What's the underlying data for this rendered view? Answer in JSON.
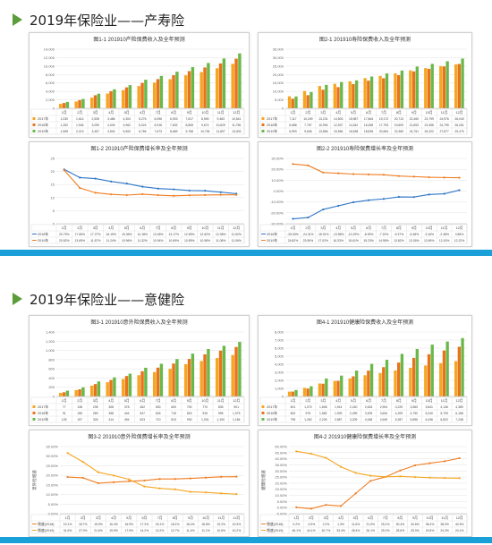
{
  "sections": [
    {
      "title": "2019年保险业——产寿险"
    },
    {
      "title": "2019年保险业——意健险"
    }
  ],
  "colors": {
    "y2017": "#f5a623",
    "y2018": "#e8731a",
    "y2019": "#6bb84a",
    "growth2018": "#2e75c5",
    "growth2019": "#ef7d22",
    "accent": "#1aa0d8",
    "title_marker": "#5b9d3a"
  },
  "chart_data": [
    {
      "id": "c11",
      "type": "bar",
      "title": "图1-1  201910产险保费收入及全年预测",
      "categories": [
        "1月",
        "2月",
        "3月",
        "4月",
        "5月",
        "6月",
        "7月",
        "8月",
        "9月",
        "10月",
        "11月",
        "12月"
      ],
      "ylim": [
        0,
        14000
      ],
      "yticks": [
        "0",
        "2,000",
        "4,000",
        "6,000",
        "8,000",
        "10,000",
        "12,000",
        "14,000"
      ],
      "series": [
        {
          "name": "2017年",
          "values": [
            1030,
            1614,
            2535,
            3486,
            4304,
            5276,
            6096,
            6903,
            7817,
            8590,
            9483,
            10541
          ],
          "labels": [
            "1,030",
            "1,614",
            "2,535",
            "3,486",
            "4,304",
            "5,276",
            "6,096",
            "6,903",
            "7,817",
            "8,590",
            "9,483",
            "10,541"
          ]
        },
        {
          "name": "2018年",
          "values": [
            1252,
            1946,
            3090,
            4049,
            4962,
            6024,
            6916,
            7832,
            8808,
            9674,
            10629,
            11756
          ],
          "labels": [
            "1,252",
            "1,946",
            "3,090",
            "4,049",
            "4,962",
            "6,024",
            "6,916",
            "7,832",
            "8,808",
            "9,674",
            "10,629",
            "11,756"
          ]
        },
        {
          "name": "2019年",
          "values": [
            1508,
            2213,
            3457,
            4504,
            5500,
            6766,
            7673,
            8669,
            9768,
            10736,
            11807,
            13003
          ],
          "labels": [
            "1,508",
            "2,213",
            "3,457",
            "4,504",
            "5,500",
            "6,766",
            "7,673",
            "8,669",
            "9,768",
            "10,736",
            "11,807",
            "13,003"
          ]
        }
      ]
    },
    {
      "id": "c21",
      "type": "bar",
      "title": "图2-1  201910寿险保费收入及全年预测",
      "categories": [
        "1月",
        "2月",
        "3月",
        "4月",
        "5月",
        "6月",
        "7月",
        "8月",
        "9月",
        "10月",
        "11月",
        "12月"
      ],
      "ylim": [
        0,
        35000
      ],
      "yticks": [
        "0",
        "5,000",
        "10,000",
        "15,000",
        "20,000",
        "25,000",
        "30,000",
        "35,000"
      ],
      "series": [
        {
          "name": "2017年",
          "values": [
            7117,
            10249,
            13231,
            14503,
            15987,
            17864,
            19172,
            20713,
            22460,
            23799,
            24976,
            26040
          ],
          "labels": [
            "7,117",
            "10,249",
            "13,231",
            "14,503",
            "15,987",
            "17,864",
            "19,172",
            "20,713",
            "22,460",
            "23,799",
            "24,976",
            "26,040"
          ]
        },
        {
          "name": "2018年",
          "values": [
            5688,
            7757,
            10994,
            12537,
            14342,
            16365,
            17793,
            19609,
            21853,
            23358,
            24795,
            26261
          ],
          "labels": [
            "5,688",
            "7,757",
            "10,994",
            "12,537",
            "14,342",
            "16,365",
            "17,793",
            "19,609",
            "21,853",
            "23,358",
            "24,795",
            "26,261"
          ]
        },
        {
          "name": "2019年",
          "values": [
            6993,
            9606,
            13865,
            15556,
            16538,
            18835,
            20654,
            22369,
            24751,
            26322,
            27877,
            29470
          ],
          "labels": [
            "6,993",
            "9,606",
            "13,865",
            "15,556",
            "16,538",
            "18,835",
            "20,654",
            "22,369",
            "24,751",
            "26,322",
            "27,877",
            "29,470"
          ]
        }
      ]
    },
    {
      "id": "c12",
      "type": "line",
      "title": "图1-2  201910产险保费增长率及全年预测",
      "categories": [
        "1月",
        "2月",
        "3月",
        "4月",
        "5月",
        "6月",
        "7月",
        "8月",
        "9月",
        "10月",
        "11月",
        "12月"
      ],
      "ylim": [
        0,
        25
      ],
      "yticks": [
        "0",
        "5",
        "10",
        "15",
        "20",
        "25"
      ],
      "series": [
        {
          "name": "2018年",
          "values": [
            20.79,
            17.65,
            17.27,
            16.15,
            15.36,
            14.18,
            13.45,
            13.17,
            12.69,
            12.62,
            12.08,
            11.52
          ],
          "labels": [
            "20.79%",
            "17.65%",
            "17.27%",
            "16.15%",
            "15.36%",
            "14.18%",
            "13.45%",
            "13.17%",
            "12.69%",
            "12.62%",
            "12.08%",
            "11.52%"
          ]
        },
        {
          "name": "2019年",
          "values": [
            20.52,
            13.69,
            11.87,
            11.24,
            10.96,
            11.32,
            10.94,
            10.69,
            10.89,
            10.98,
            11.08,
            11.06
          ],
          "labels": [
            "20.52%",
            "13.69%",
            "11.87%",
            "11.24%",
            "10.96%",
            "11.32%",
            "10.94%",
            "10.69%",
            "10.89%",
            "10.98%",
            "11.08%",
            "11.06%"
          ]
        }
      ]
    },
    {
      "id": "c22",
      "type": "line",
      "title": "图2-2  201910寿险保费增长率及全年预测",
      "categories": [
        "1月",
        "2月",
        "3月",
        "4月",
        "5月",
        "6月",
        "7月",
        "8月",
        "9月",
        "10月",
        "11月",
        "12月"
      ],
      "ylim": [
        -30,
        30
      ],
      "yticks": [
        "-30.00%",
        "-20.00%",
        "-10.00%",
        "0.00%",
        "10.00%",
        "20.00%",
        "30.00%"
      ],
      "series": [
        {
          "name": "2018年",
          "values": [
            -25.5,
            -24.31,
            -16.91,
            -13.58,
            -10.29,
            -8.39,
            -7.19,
            -5.37,
            -5.48,
            -3.16,
            -2.48,
            0.85
          ],
          "labels": [
            "-25.53%",
            "-24.31%",
            "-16.91%",
            "-13.58%",
            "-10.29%",
            "-8.39%",
            "-7.19%",
            "-5.37%",
            "-5.48%",
            "-3.16%",
            "-2.48%",
            "0.85%"
          ]
        },
        {
          "name": "2019年",
          "values": [
            24.82,
            23.55,
            17.02,
            16.33,
            15.61,
            15.23,
            14.98,
            13.82,
            13.26,
            12.69,
            12.43,
            12.22
          ],
          "labels": [
            "24.82%",
            "23.55%",
            "17.02%",
            "16.33%",
            "15.61%",
            "15.23%",
            "14.98%",
            "13.82%",
            "13.26%",
            "12.69%",
            "12.43%",
            "12.22%"
          ]
        }
      ]
    },
    {
      "id": "c31",
      "type": "bar",
      "title": "图3-1  201910意外险保费收入及全年预测",
      "categories": [
        "1月",
        "2月",
        "3月",
        "4月",
        "5月",
        "6月",
        "7月",
        "8月",
        "9月",
        "10月",
        "11月",
        "12月"
      ],
      "ylim": [
        0,
        1400
      ],
      "yticks": [
        "0",
        "200",
        "400",
        "600",
        "800",
        "1,000",
        "1,200",
        "1,400"
      ],
      "series": [
        {
          "name": "2017年",
          "values": [
            77,
            138,
            235,
            308,
            378,
            462,
            530,
            600,
            700,
            770,
            835,
            901
          ],
          "labels": [
            "77",
            "138",
            "235",
            "308",
            "378",
            "462",
            "530",
            "600",
            "700",
            "770",
            "835",
            "901"
          ]
        },
        {
          "name": "2018年",
          "values": [
            91,
            155,
            269,
            358,
            444,
            547,
            626,
            715,
            815,
            915,
            995,
            1075
          ],
          "labels": [
            "91",
            "155",
            "269",
            "358",
            "444",
            "547",
            "626",
            "715",
            "815",
            "915",
            "995",
            "1,075"
          ]
        },
        {
          "name": "2019年",
          "values": [
            125,
            197,
            326,
            414,
            494,
            623,
            710,
            813,
            930,
            1031,
            1100,
            1184
          ],
          "labels": [
            "125",
            "197",
            "326",
            "414",
            "494",
            "623",
            "710",
            "813",
            "930",
            "1,031",
            "1,100",
            "1,184"
          ]
        }
      ]
    },
    {
      "id": "c41",
      "type": "bar",
      "title": "图4-1  201910健康险保费收入及全年预测",
      "categories": [
        "1月",
        "2月",
        "3月",
        "4月",
        "5月",
        "6月",
        "7月",
        "8月",
        "9月",
        "10月",
        "11月",
        "12月"
      ],
      "ylim": [
        0,
        8000
      ],
      "yticks": [
        "0",
        "1,000",
        "2,000",
        "3,000",
        "4,000",
        "5,000",
        "6,000",
        "7,000",
        "8,000"
      ],
      "series": [
        {
          "name": "2017年",
          "values": [
            601,
            1070,
            1608,
            1914,
            2240,
            2633,
            2904,
            3229,
            3560,
            3841,
            4136,
            4389
          ],
          "labels": [
            "601",
            "1,070",
            "1,608",
            "1,914",
            "2,240",
            "2,633",
            "2,904",
            "3,229",
            "3,560",
            "3,841",
            "4,136",
            "4,389"
          ]
        },
        {
          "name": "2018年",
          "values": [
            602,
            975,
            1582,
            1939,
            2499,
            3209,
            3634,
            4209,
            4790,
            5240,
            5709,
            6168
          ],
          "labels": [
            "602",
            "975",
            "1,582",
            "1,939",
            "2,499",
            "3,209",
            "3,634",
            "4,209",
            "4,790",
            "5,240",
            "5,709",
            "6,168"
          ]
        },
        {
          "name": "2019年",
          "values": [
            799,
            1262,
            2226,
            2587,
            3209,
            4048,
            4549,
            5287,
            5896,
            6436,
            6822,
            7248
          ],
          "labels": [
            "799",
            "1,262",
            "2,226",
            "2,587",
            "3,209",
            "4,048",
            "4,549",
            "5,287",
            "5,896",
            "6,436",
            "6,822",
            "7,248"
          ]
        }
      ]
    },
    {
      "id": "c32",
      "type": "line",
      "title": "图3-2  201910意外险保费增长率及全年预测",
      "categories": [
        "1月",
        "2月",
        "3月",
        "4月",
        "5月",
        "6月",
        "7月",
        "8月",
        "9月",
        "10月",
        "11月",
        "12月"
      ],
      "ylim": [
        0,
        35
      ],
      "yticks": [
        "0.00%",
        "5.00%",
        "10.00%",
        "15.00%",
        "20.00%",
        "25.00%",
        "30.00%",
        "35.00%"
      ],
      "ylabel": "意外险增速",
      "series": [
        {
          "name": "增速(2018)",
          "values": [
            19.1,
            18.7,
            15.9,
            16.4,
            16.9,
            17.3,
            18.1,
            18.1,
            18.4,
            18.8,
            19.2,
            19.3
          ],
          "labels": [
            "19.1%",
            "18.7%",
            "15.9%",
            "16.4%",
            "16.9%",
            "17.3%",
            "18.1%",
            "18.1%",
            "18.4%",
            "18.8%",
            "19.2%",
            "19.3%"
          ]
        },
        {
          "name": "增速(2019)",
          "values": [
            31.6,
            27.0,
            21.6,
            19.9,
            17.9,
            14.2,
            13.2,
            12.7,
            11.4,
            11.1,
            10.6,
            10.2
          ],
          "labels": [
            "31.6%",
            "27.0%",
            "21.6%",
            "19.9%",
            "17.9%",
            "14.2%",
            "13.2%",
            "12.7%",
            "11.4%",
            "11.1%",
            "10.6%",
            "10.2%"
          ]
        }
      ]
    },
    {
      "id": "c42",
      "type": "line",
      "title": "图4-2  201910健康险保费增长率及全年预测",
      "categories": [
        "1月",
        "2月",
        "3月",
        "4月",
        "5月",
        "6月",
        "7月",
        "8月",
        "9月",
        "10月",
        "11月",
        "12月"
      ],
      "ylim": [
        -5,
        50
      ],
      "yticks": [
        "-5.00%",
        "0.00%",
        "5.00%",
        "10.00%",
        "15.00%",
        "20.00%",
        "25.00%",
        "30.00%",
        "35.00%",
        "40.00%",
        "45.00%",
        "50.00%"
      ],
      "ylabel": "健康险增速",
      "series": [
        {
          "name": "增速(2018)",
          "values": [
            0.2,
            -0.9,
            2.2,
            1.3,
            11.6,
            21.9,
            25.1,
            30.4,
            34.6,
            36.4,
            38.0,
            40.5
          ],
          "labels": [
            "0.2%",
            "-0.9%",
            "2.2%",
            "1.3%",
            "11.6%",
            "21.9%",
            "25.1%",
            "30.4%",
            "34.6%",
            "36.4%",
            "38.0%",
            "40.5%"
          ]
        },
        {
          "name": "增速(2019)",
          "values": [
            46.1,
            44.1,
            40.7,
            33.4,
            28.4,
            26.1,
            25.2,
            25.6,
            25.0,
            24.5,
            24.2,
            24.1
          ],
          "labels": [
            "46.1%",
            "44.1%",
            "40.7%",
            "33.4%",
            "28.4%",
            "26.1%",
            "25.2%",
            "25.6%",
            "25.0%",
            "24.5%",
            "24.2%",
            "24.1%"
          ]
        }
      ]
    }
  ]
}
